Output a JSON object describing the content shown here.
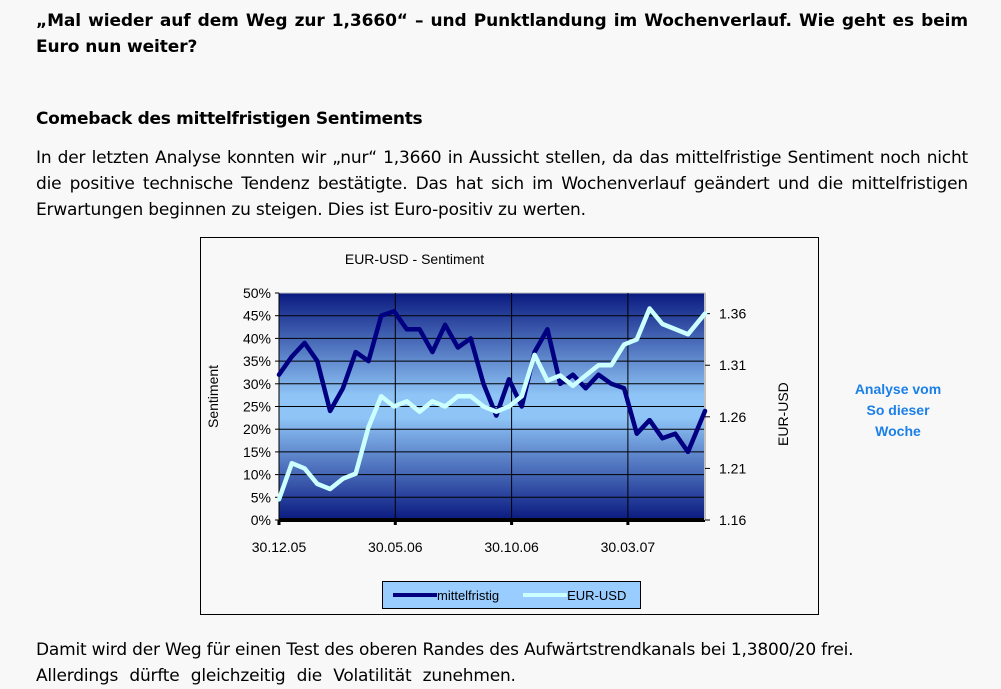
{
  "article": {
    "headline": "„Mal wieder auf dem Weg zur 1,3660“ – und Punktlandung im Wochenverlauf. Wie geht es beim Euro nun weiter?",
    "section_heading": "Comeback des mittelfristigen Sentiments",
    "paragraph_1": "In der letzten Analyse konnten wir „nur“ 1,3660 in Aussicht stellen, da das mittelfristige Sentiment noch nicht die positive technische Tendenz bestätigte. Das hat sich im Wochenverlauf geändert und die mittelfristigen Erwartungen beginnen zu steigen. Dies ist Euro-positiv zu werten.",
    "paragraph_2_line_1": "Damit wird der Weg für einen Test des oberen Randes des Aufwärtstrendkanals bei 1,3800/20 frei.",
    "paragraph_2_line_2": "Allerdings dürfte gleichzeitig die Volatilität zunehmen."
  },
  "side_note": {
    "line_1": "Analyse vom",
    "line_2": "So dieser",
    "line_3": "Woche",
    "color": "#1a7fe8"
  },
  "chart": {
    "title": "EUR-USD - Sentiment",
    "ylabel_left": "Sentiment",
    "ylabel_right": "EUR-USD",
    "legend": [
      {
        "label": "mittelfristig",
        "color": "#000080"
      },
      {
        "label": "EUR-USD",
        "color": "#ccffff"
      }
    ]
  },
  "chart_data": {
    "type": "line",
    "title": "EUR-USD - Sentiment",
    "xlabel": "",
    "ylabel": "Sentiment",
    "ylabel_secondary": "EUR-USD",
    "x_tick_labels": [
      "30.12.05",
      "30.05.06",
      "30.10.06",
      "30.03.07"
    ],
    "y_tick_labels": [
      "0%",
      "5%",
      "10%",
      "15%",
      "20%",
      "25%",
      "30%",
      "35%",
      "40%",
      "45%",
      "50%"
    ],
    "y2_tick_labels": [
      "1.16",
      "1.21",
      "1.26",
      "1.31",
      "1.36"
    ],
    "ylim": [
      0,
      50
    ],
    "y2lim": [
      1.16,
      1.38
    ],
    "grid": true,
    "legend_position": "bottom",
    "x_positions": [
      0,
      0.03,
      0.06,
      0.09,
      0.12,
      0.15,
      0.18,
      0.21,
      0.24,
      0.27,
      0.3,
      0.33,
      0.36,
      0.39,
      0.42,
      0.45,
      0.48,
      0.51,
      0.54,
      0.57,
      0.6,
      0.63,
      0.66,
      0.69,
      0.72,
      0.75,
      0.78,
      0.81,
      0.84,
      0.87,
      0.9,
      0.93,
      0.96,
      1.0
    ],
    "series": [
      {
        "name": "mittelfristig",
        "axis": "left",
        "color": "#000080",
        "values": [
          32,
          36,
          39,
          35,
          24,
          29,
          37,
          35,
          45,
          46,
          42,
          42,
          37,
          43,
          38,
          40,
          30,
          23,
          31,
          25,
          37,
          42,
          30,
          32,
          29,
          32,
          30,
          29,
          19,
          22,
          18,
          19,
          15,
          24
        ]
      },
      {
        "name": "EUR-USD",
        "axis": "right",
        "color": "#ccffff",
        "values": [
          1.18,
          1.215,
          1.21,
          1.195,
          1.19,
          1.2,
          1.205,
          1.25,
          1.28,
          1.27,
          1.275,
          1.265,
          1.275,
          1.27,
          1.28,
          1.28,
          1.27,
          1.265,
          1.27,
          1.28,
          1.32,
          1.295,
          1.3,
          1.29,
          1.3,
          1.31,
          1.31,
          1.33,
          1.335,
          1.365,
          1.35,
          1.345,
          1.34,
          1.36
        ]
      }
    ]
  }
}
